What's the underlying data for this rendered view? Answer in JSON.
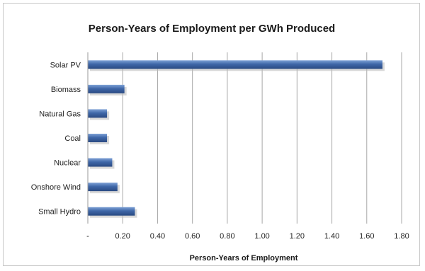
{
  "chart_data": {
    "type": "bar",
    "orientation": "horizontal",
    "title": "Person-Years of Employment per GWh Produced",
    "xlabel": "Person-Years of Employment",
    "ylabel": "",
    "categories": [
      "Solar PV",
      "Biomass",
      "Natural Gas",
      "Coal",
      "Nuclear",
      "Onshore Wind",
      "Small Hydro"
    ],
    "values": [
      1.69,
      0.21,
      0.11,
      0.11,
      0.14,
      0.17,
      0.27
    ],
    "xlim": [
      0,
      1.8
    ],
    "ticks": [
      0,
      0.2,
      0.4,
      0.6,
      0.8,
      1.0,
      1.2,
      1.4,
      1.6,
      1.8
    ],
    "tick_labels": [
      "-",
      "0.20",
      "0.40",
      "0.60",
      "0.80",
      "1.00",
      "1.20",
      "1.40",
      "1.60",
      "1.80"
    ],
    "grid": true,
    "legend": "none",
    "bar_color": "#3f67a8"
  }
}
